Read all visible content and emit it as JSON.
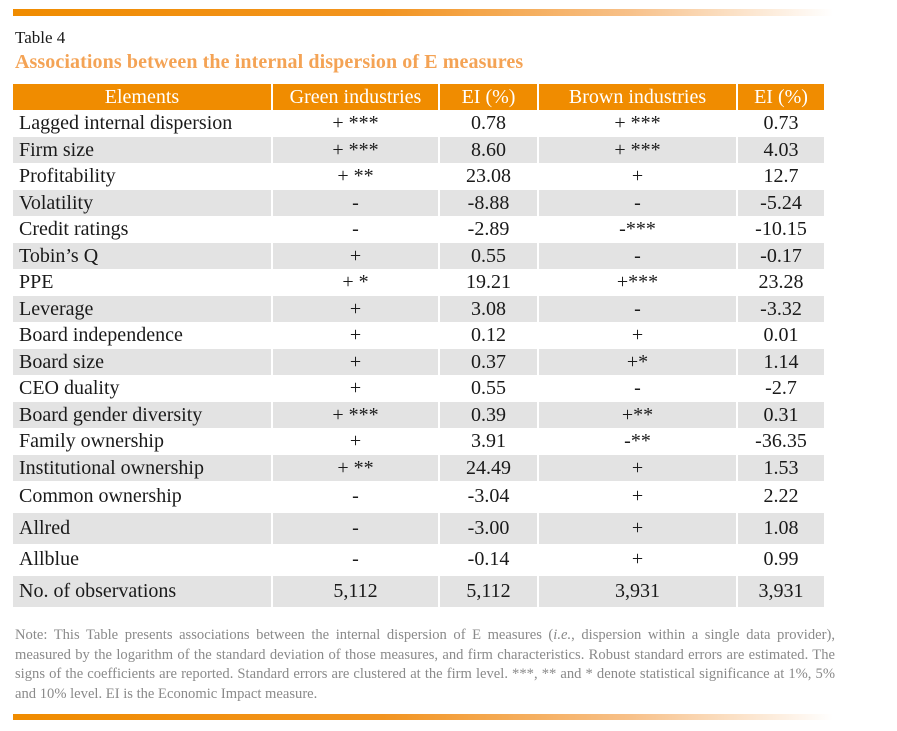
{
  "table_label": "Table 4",
  "title": "Associations between the internal dispersion of E measures",
  "colors": {
    "accent": "#f08c00",
    "title": "#f4a355",
    "row_shade": "#e3e3e3",
    "note": "#8a8a8a"
  },
  "columns": [
    "Elements",
    "Green industries",
    "EI (%)",
    "Brown industries",
    "EI (%)"
  ],
  "rows": [
    [
      "Lagged internal dispersion",
      "+ ***",
      "0.78",
      "+ ***",
      "0.73"
    ],
    [
      "Firm size",
      "+ ***",
      "8.60",
      "+ ***",
      "4.03"
    ],
    [
      "Profitability",
      "+ **",
      "23.08",
      "+",
      "12.7"
    ],
    [
      "Volatility",
      "-",
      "-8.88",
      "-",
      "-5.24"
    ],
    [
      "Credit ratings",
      "-",
      "-2.89",
      "-***",
      "-10.15"
    ],
    [
      "Tobin’s Q",
      "+",
      "0.55",
      "-",
      "-0.17"
    ],
    [
      "PPE",
      "+ *",
      "19.21",
      "+***",
      "23.28"
    ],
    [
      "Leverage",
      "+",
      "3.08",
      "-",
      "-3.32"
    ],
    [
      "Board independence",
      "+",
      "0.12",
      "+",
      "0.01"
    ],
    [
      "Board size",
      "+",
      "0.37",
      "+*",
      "1.14"
    ],
    [
      "CEO duality",
      "+",
      "0.55",
      "-",
      "-2.7"
    ],
    [
      "Board gender diversity",
      "+ ***",
      "0.39",
      "+**",
      "0.31"
    ],
    [
      "Family ownership",
      "+",
      "3.91",
      "-**",
      "-36.35"
    ],
    [
      "Institutional ownership",
      "+ **",
      "24.49",
      "+",
      "1.53"
    ],
    [
      "Common ownership",
      "-",
      "-3.04",
      "+",
      "2.22"
    ],
    [
      "Allred",
      "-",
      "-3.00",
      "+",
      "1.08"
    ],
    [
      "Allblue",
      "-",
      "-0.14",
      "+",
      "0.99"
    ],
    [
      "No. of observations",
      "5,112",
      "5,112",
      "3,931",
      "3,931"
    ]
  ],
  "note": {
    "part1": "Note: This Table presents associations between the internal dispersion of E measures (",
    "italic": "i.e.",
    "part2": ", dispersion within a single data provider), measured by the logarithm of the standard deviation of those measures, and firm characteristics. Robust standard errors are estimated. The signs of the coefficients are reported. Standard errors are clustered at the firm level. ***, ** and * denote statistical significance at 1%, 5% and 10% level. EI is the Economic Impact measure."
  }
}
